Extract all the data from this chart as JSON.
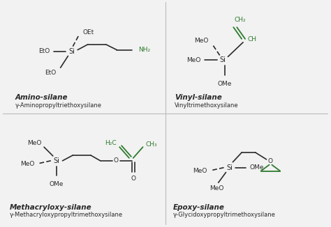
{
  "background_color": "#f2f2f2",
  "black": "#2a2a2a",
  "green": "#2d7a2d",
  "titles": [
    "Amino-silane",
    "Vinyl-silane",
    "Methacryloxy-silane",
    "Epoxy-silane"
  ],
  "subtitles": [
    "γ-Aminopropyltriethoxysilane",
    "Vinyltrimethoxysilane",
    "γ-Methacryloxypropyltrimethoxysilane",
    "γ-Glycidoxypropyltrimethoxysilane"
  ]
}
